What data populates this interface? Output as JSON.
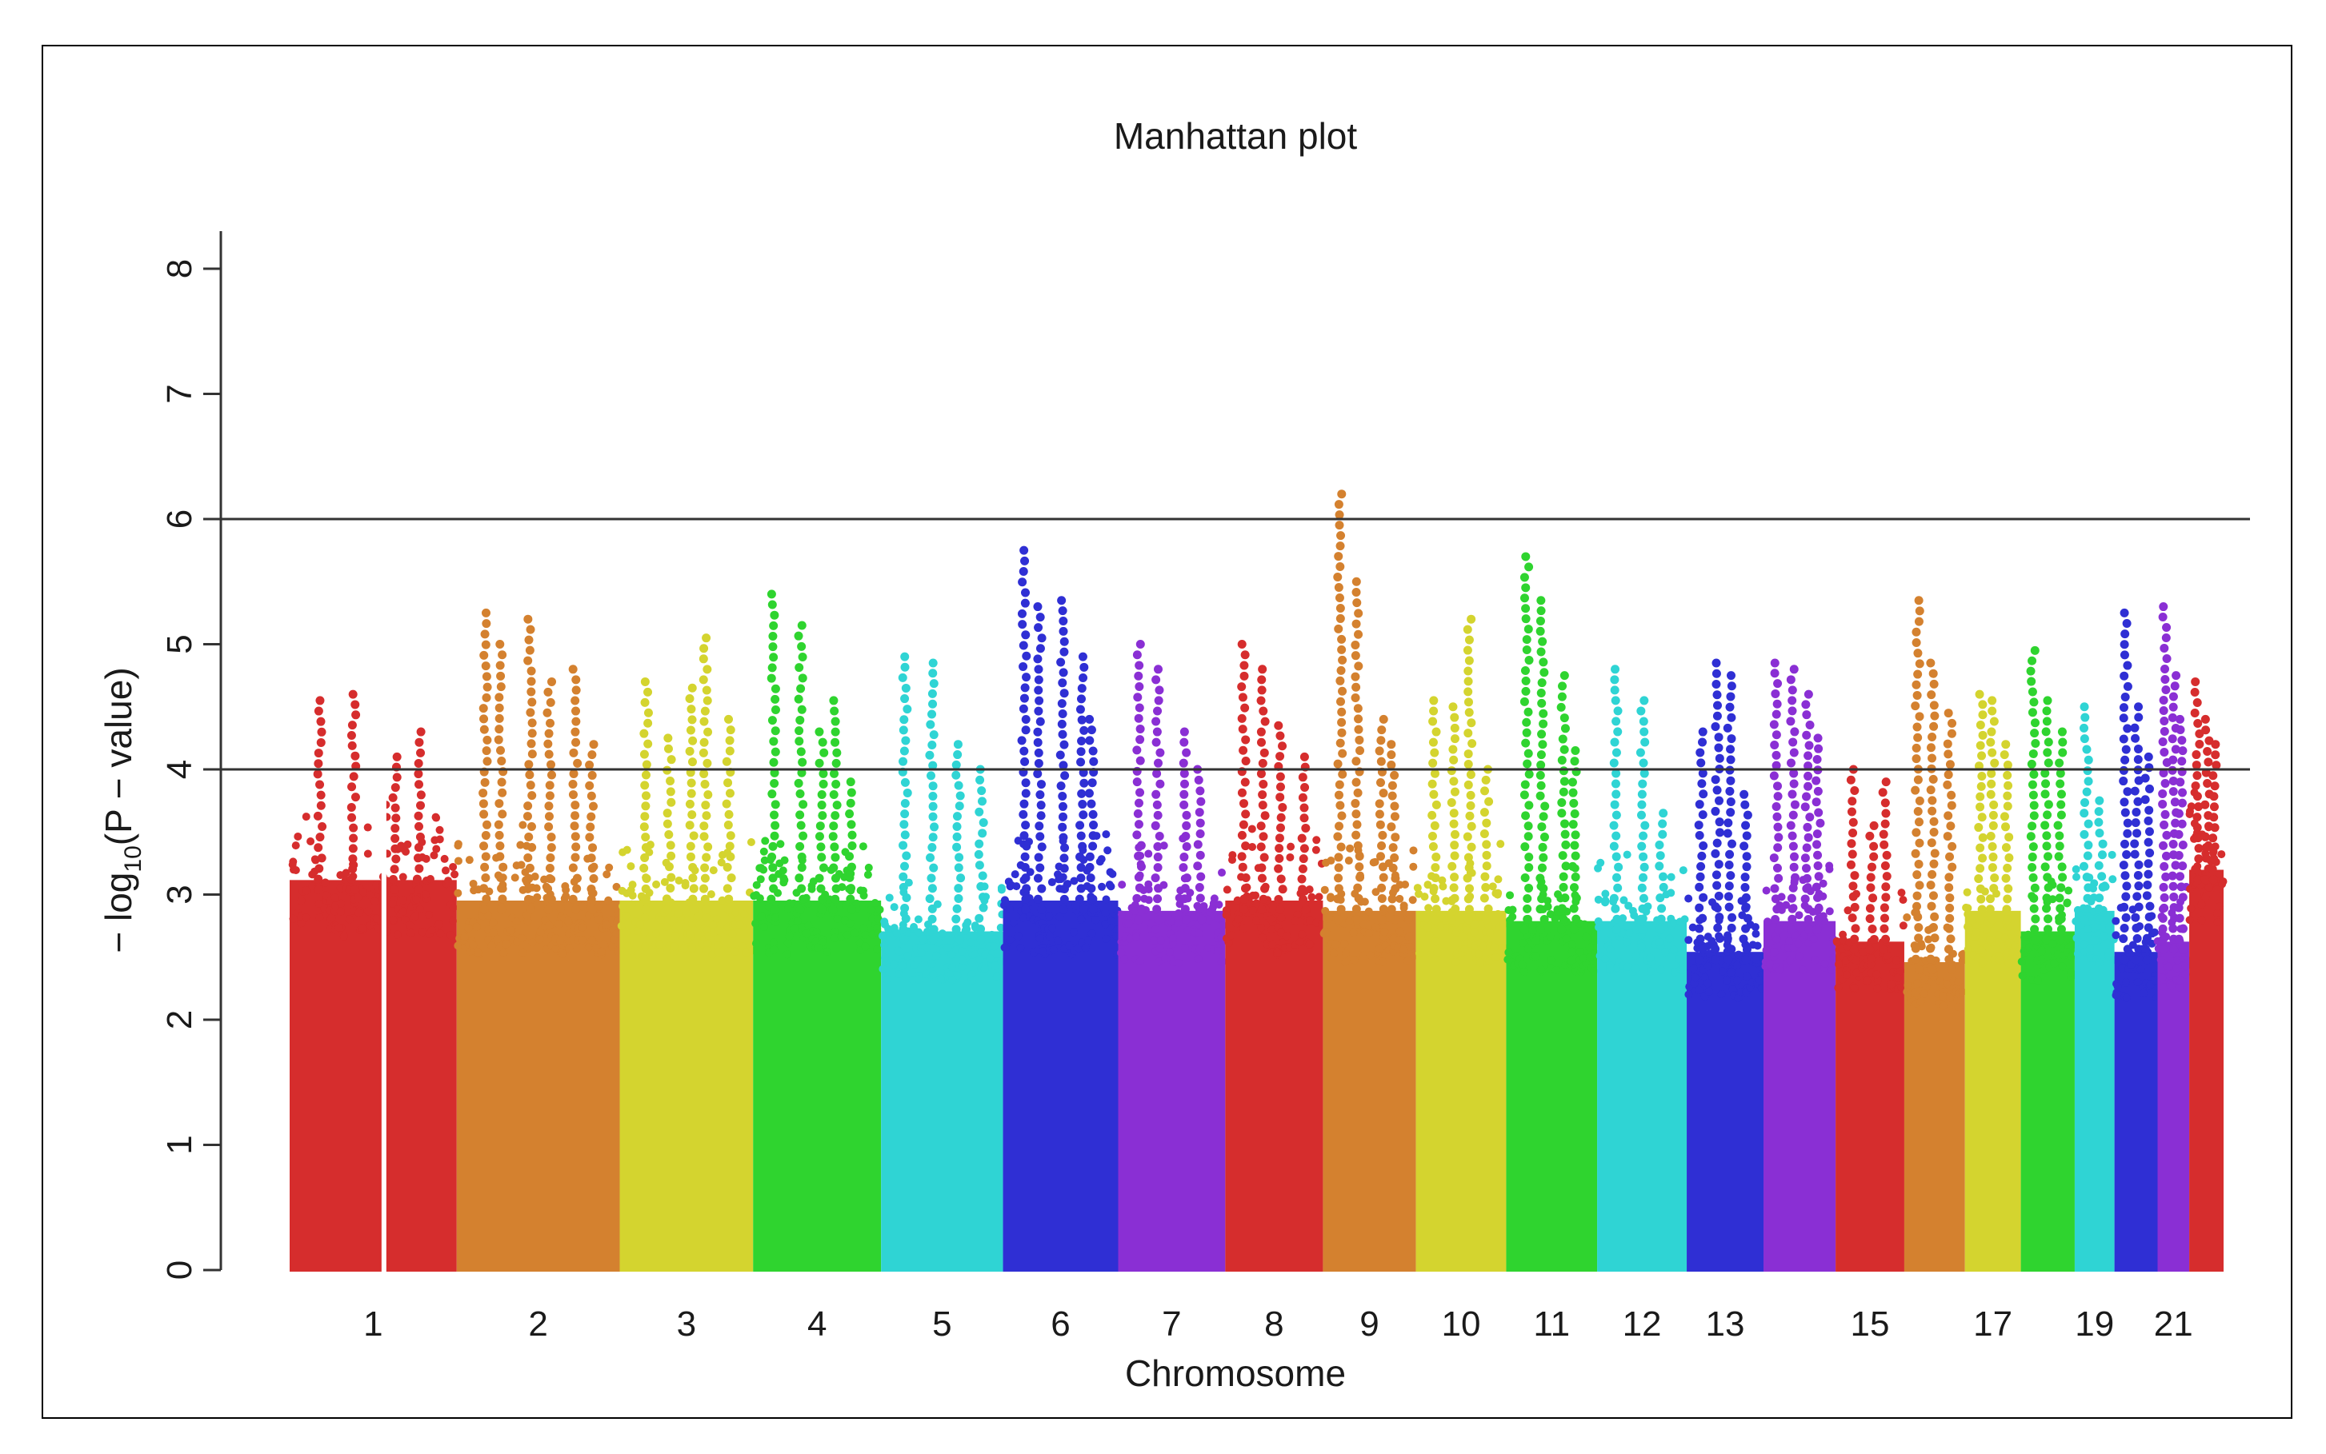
{
  "chart_data": {
    "type": "scatter",
    "title": "Manhattan plot",
    "xlabel": "Chromosome",
    "ylabel": {
      "prefix": "− log",
      "subscript": "10",
      "suffix": "(P − value)"
    },
    "ylim": [
      0,
      8.3
    ],
    "y_ticks": [
      0,
      1,
      2,
      3,
      4,
      5,
      6,
      7,
      8
    ],
    "threshold_lines": [
      4,
      6
    ],
    "grid": false,
    "legend": "none",
    "chromosomes": [
      {
        "chr": "1",
        "label": "1",
        "color": "#d62d2d",
        "band_max": 3.8,
        "peaks": [
          4.55,
          4.6,
          4.1,
          4.3
        ]
      },
      {
        "chr": "2",
        "label": "2",
        "color": "#d4812f",
        "band_max": 3.6,
        "peaks": [
          5.25,
          5.0,
          5.2,
          4.7,
          4.8,
          4.2
        ]
      },
      {
        "chr": "3",
        "label": "3",
        "color": "#d4d42f",
        "band_max": 3.6,
        "peaks": [
          4.7,
          4.25,
          4.65,
          5.05,
          4.4
        ]
      },
      {
        "chr": "4",
        "label": "4",
        "color": "#2fd42f",
        "band_max": 3.6,
        "peaks": [
          5.4,
          5.15,
          4.3,
          4.55,
          3.9
        ]
      },
      {
        "chr": "5",
        "label": "5",
        "color": "#2fd4d4",
        "band_max": 3.3,
        "peaks": [
          4.9,
          4.85,
          4.2,
          4.0
        ]
      },
      {
        "chr": "6",
        "label": "6",
        "color": "#2f2fd4",
        "band_max": 3.6,
        "peaks": [
          5.75,
          5.3,
          5.35,
          4.9,
          4.4
        ]
      },
      {
        "chr": "7",
        "label": "7",
        "color": "#8a2fd4",
        "band_max": 3.5,
        "peaks": [
          5.0,
          4.8,
          4.3,
          4.0
        ]
      },
      {
        "chr": "8",
        "label": "8",
        "color": "#d62d2d",
        "band_max": 3.6,
        "peaks": [
          5.0,
          4.8,
          4.35,
          4.1
        ]
      },
      {
        "chr": "9",
        "label": "9",
        "color": "#d4812f",
        "band_max": 3.5,
        "peaks": [
          6.2,
          5.5,
          4.4,
          4.2
        ]
      },
      {
        "chr": "10",
        "label": "10",
        "color": "#d4d42f",
        "band_max": 3.5,
        "peaks": [
          4.55,
          4.5,
          5.2,
          4.0
        ]
      },
      {
        "chr": "11",
        "label": "11",
        "color": "#2fd42f",
        "band_max": 3.4,
        "peaks": [
          5.7,
          5.35,
          4.75,
          4.15
        ]
      },
      {
        "chr": "12",
        "label": "12",
        "color": "#2fd4d4",
        "band_max": 3.4,
        "peaks": [
          4.8,
          4.55,
          3.65
        ]
      },
      {
        "chr": "13",
        "label": "13",
        "color": "#2f2fd4",
        "band_max": 3.1,
        "peaks": [
          4.3,
          4.85,
          4.75,
          3.8
        ]
      },
      {
        "chr": "14",
        "label": "",
        "color": "#8a2fd4",
        "band_max": 3.4,
        "peaks": [
          4.85,
          4.8,
          4.6,
          4.25
        ]
      },
      {
        "chr": "15",
        "label": "15",
        "color": "#d62d2d",
        "band_max": 3.2,
        "peaks": [
          4.0,
          3.55,
          3.9
        ]
      },
      {
        "chr": "16",
        "label": "",
        "color": "#d4812f",
        "band_max": 3.0,
        "peaks": [
          5.35,
          4.85,
          4.45
        ]
      },
      {
        "chr": "17",
        "label": "17",
        "color": "#d4d42f",
        "band_max": 3.5,
        "peaks": [
          4.6,
          4.55,
          4.2
        ]
      },
      {
        "chr": "18",
        "label": "",
        "color": "#2fd42f",
        "band_max": 3.3,
        "peaks": [
          4.95,
          4.55,
          4.3
        ]
      },
      {
        "chr": "19",
        "label": "19",
        "color": "#2fd4d4",
        "band_max": 3.5,
        "peaks": [
          4.5,
          3.75
        ]
      },
      {
        "chr": "20",
        "label": "",
        "color": "#2f2fd4",
        "band_max": 3.1,
        "peaks": [
          5.25,
          4.5,
          4.1
        ]
      },
      {
        "chr": "21",
        "label": "21",
        "color": "#8a2fd4",
        "band_max": 3.2,
        "peaks": [
          5.3,
          4.75,
          4.4
        ]
      },
      {
        "chr": "22",
        "label": "",
        "color": "#d62d2d",
        "band_max": 3.9,
        "peaks": [
          4.7,
          4.4,
          4.2
        ]
      }
    ]
  }
}
